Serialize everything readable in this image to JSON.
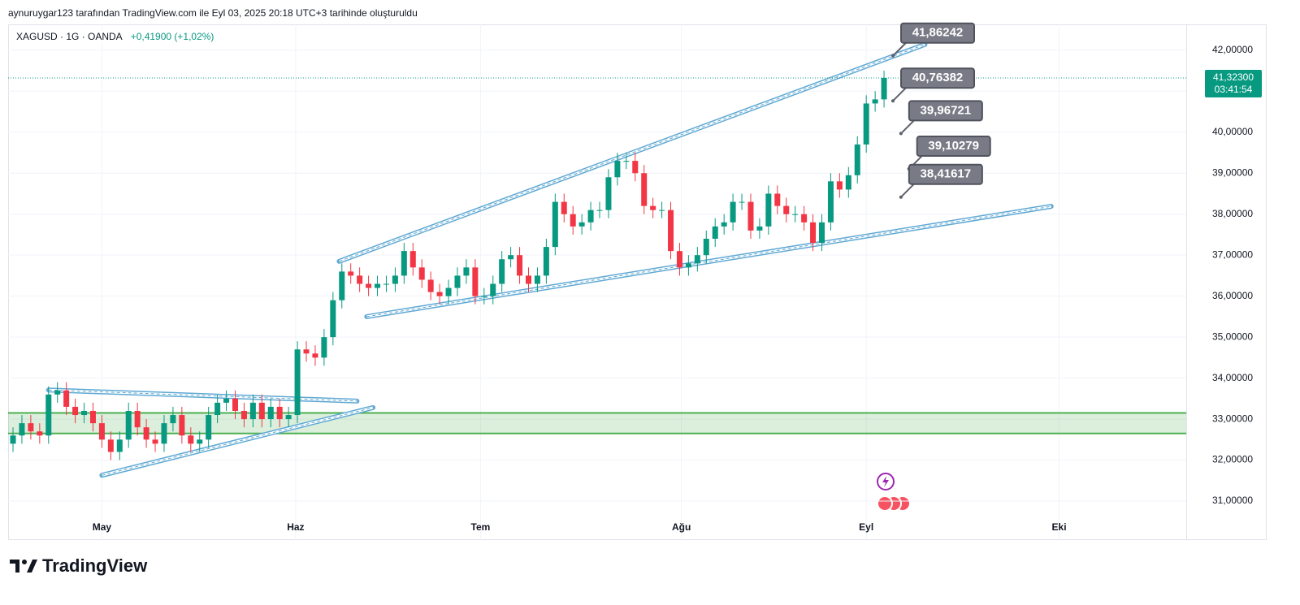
{
  "header": {
    "caption": "aynuruygar123 tarafından TradingView.com ile Eyl 03, 2025 20:18 UTC+3 tarihinde oluşturuldu"
  },
  "chart_data": {
    "type": "candlestick",
    "symbol": "XAGUSD · 1G · OANDA",
    "change": "+0,41900 (+1,02%)",
    "open": [
      32.4,
      32.6,
      32.9,
      32.7,
      32.6,
      33.6,
      33.7,
      33.3,
      33.1,
      33.2,
      32.9,
      32.5,
      32.2,
      32.5,
      33.2,
      32.8,
      32.5,
      32.4,
      32.9,
      33.1,
      32.6,
      32.4,
      32.5,
      33.1,
      33.4,
      33.5,
      33.2,
      33.0,
      33.4,
      33.0,
      33.3,
      33.0,
      33.1,
      34.7,
      34.6,
      34.5,
      35.0,
      35.9,
      36.6,
      36.5,
      36.3,
      36.2,
      36.3,
      36.3,
      36.5,
      37.1,
      36.7,
      36.4,
      36.1,
      36.0,
      36.2,
      36.5,
      36.7,
      36.0,
      36.0,
      36.3,
      36.9,
      37.0,
      36.5,
      36.3,
      36.5,
      37.2,
      38.3,
      38.0,
      37.7,
      37.8,
      38.1,
      38.1,
      38.9,
      39.3,
      39.3,
      39.0,
      38.2,
      38.1,
      38.1,
      37.1,
      36.7,
      36.8,
      37.0,
      37.4,
      37.7,
      37.8,
      38.3,
      38.3,
      37.6,
      37.7,
      38.5,
      38.2,
      38.0,
      38.0,
      37.8,
      37.3,
      37.8,
      38.8,
      38.6,
      38.95,
      39.7,
      40.7,
      40.8
    ],
    "high": [
      32.8,
      33.1,
      33.1,
      32.9,
      33.8,
      33.9,
      33.9,
      33.5,
      33.4,
      33.4,
      33.1,
      32.7,
      32.7,
      33.4,
      33.4,
      33.0,
      32.7,
      33.1,
      33.3,
      33.3,
      32.8,
      32.7,
      33.3,
      33.6,
      33.7,
      33.7,
      33.4,
      33.6,
      33.6,
      33.5,
      33.5,
      33.3,
      34.9,
      34.9,
      34.8,
      35.2,
      36.1,
      36.8,
      36.8,
      36.7,
      36.5,
      36.5,
      36.5,
      36.7,
      37.3,
      37.3,
      36.9,
      36.6,
      36.3,
      36.4,
      36.7,
      36.9,
      36.9,
      36.2,
      36.5,
      37.1,
      37.2,
      37.2,
      36.7,
      36.7,
      37.4,
      38.5,
      38.5,
      38.2,
      38.0,
      38.3,
      38.3,
      39.1,
      39.5,
      39.5,
      39.5,
      39.2,
      38.4,
      38.3,
      38.3,
      37.3,
      37.0,
      37.2,
      37.6,
      37.9,
      38.0,
      38.5,
      38.5,
      38.5,
      37.9,
      38.7,
      38.7,
      38.4,
      38.2,
      38.2,
      38.0,
      38.0,
      39.0,
      39.0,
      39.15,
      39.9,
      40.9,
      41.0,
      41.5
    ],
    "low": [
      32.2,
      32.4,
      32.5,
      32.4,
      32.4,
      33.4,
      33.1,
      32.9,
      32.9,
      32.7,
      32.3,
      32.0,
      32.0,
      32.3,
      32.6,
      32.3,
      32.2,
      32.2,
      32.7,
      32.4,
      32.2,
      32.2,
      32.3,
      32.9,
      33.2,
      33.0,
      32.8,
      32.8,
      32.8,
      32.8,
      32.8,
      32.8,
      32.9,
      34.4,
      34.3,
      34.3,
      34.8,
      35.7,
      36.3,
      36.1,
      36.0,
      36.0,
      36.1,
      36.1,
      36.3,
      36.5,
      36.2,
      35.9,
      35.8,
      35.8,
      36.0,
      36.3,
      35.8,
      35.8,
      35.8,
      36.1,
      36.7,
      36.3,
      36.1,
      36.1,
      36.3,
      37.0,
      37.8,
      37.5,
      37.5,
      37.6,
      37.9,
      37.9,
      38.7,
      39.1,
      38.8,
      38.0,
      37.9,
      37.9,
      36.9,
      36.5,
      36.5,
      36.6,
      36.8,
      37.2,
      37.5,
      37.6,
      38.1,
      37.4,
      37.4,
      37.5,
      38.0,
      37.8,
      37.8,
      37.6,
      37.1,
      37.1,
      37.6,
      38.4,
      38.4,
      38.75,
      39.5,
      40.5,
      40.6
    ],
    "close": [
      32.6,
      32.9,
      32.7,
      32.6,
      33.6,
      33.7,
      33.3,
      33.1,
      33.2,
      32.9,
      32.5,
      32.2,
      32.5,
      33.2,
      32.8,
      32.5,
      32.4,
      32.9,
      33.1,
      32.6,
      32.4,
      32.5,
      33.1,
      33.4,
      33.5,
      33.2,
      33.0,
      33.4,
      33.0,
      33.3,
      33.0,
      33.1,
      34.7,
      34.6,
      34.5,
      35.0,
      35.9,
      36.6,
      36.5,
      36.3,
      36.2,
      36.3,
      36.3,
      36.5,
      37.1,
      36.7,
      36.4,
      36.1,
      36.0,
      36.2,
      36.5,
      36.7,
      36.0,
      36.0,
      36.3,
      36.9,
      37.0,
      36.5,
      36.3,
      36.5,
      37.2,
      38.3,
      38.0,
      37.7,
      37.8,
      38.1,
      38.1,
      38.9,
      39.3,
      39.3,
      39.0,
      38.2,
      38.1,
      38.1,
      37.1,
      36.7,
      36.8,
      37.0,
      37.4,
      37.7,
      37.8,
      38.3,
      38.3,
      37.6,
      37.7,
      38.5,
      38.2,
      38.0,
      38.0,
      37.8,
      37.3,
      37.8,
      38.8,
      38.6,
      38.95,
      39.7,
      40.7,
      40.8,
      41.323
    ],
    "up_color": "#089981",
    "down_color": "#f23645",
    "xlim": [
      -0.55,
      132
    ],
    "xticks": [
      {
        "value": 10,
        "label": "May"
      },
      {
        "value": 31.8,
        "label": "Haz"
      },
      {
        "value": 52.6,
        "label": "Tem"
      },
      {
        "value": 75.2,
        "label": "Ağu"
      },
      {
        "value": 96,
        "label": "Eyl"
      },
      {
        "value": 117.7,
        "label": "Eki"
      }
    ],
    "ylim": [
      30.05,
      42.63
    ],
    "yticks": [
      {
        "value": 31,
        "label": "31,00000"
      },
      {
        "value": 32,
        "label": "32,00000"
      },
      {
        "value": 33,
        "label": "33,00000"
      },
      {
        "value": 34,
        "label": "34,00000"
      },
      {
        "value": 35,
        "label": "35,00000"
      },
      {
        "value": 36,
        "label": "36,00000"
      },
      {
        "value": 37,
        "label": "37,00000"
      },
      {
        "value": 38,
        "label": "38,00000"
      },
      {
        "value": 39,
        "label": "39,00000"
      },
      {
        "value": 40,
        "label": "40,00000"
      },
      {
        "value": 41,
        "label": "41,00000"
      },
      {
        "value": 42,
        "label": "42,00000"
      }
    ],
    "grid": true,
    "last_price": {
      "value": 41.323,
      "label": "41,32300"
    },
    "countdown": "03:41:54",
    "zone": [
      32.65,
      33.15
    ],
    "trend_lines": [
      [
        [
          36.7,
          36.85
        ],
        [
          102.6,
          42.14
        ]
      ],
      [
        [
          39.8,
          35.5
        ],
        [
          116.8,
          38.19
        ]
      ],
      [
        [
          4.0,
          33.71
        ],
        [
          38.7,
          33.44
        ]
      ],
      [
        [
          10,
          31.63
        ],
        [
          40.5,
          33.28
        ]
      ]
    ],
    "callouts": [
      {
        "x": 99,
        "value": 41.86242,
        "label": "41,86242"
      },
      {
        "x": 99,
        "value": 40.76382,
        "label": "40,76382"
      },
      {
        "x": 99.9,
        "value": 39.96721,
        "label": "39,96721"
      },
      {
        "x": 100.8,
        "value": 39.10279,
        "label": "39,10279"
      },
      {
        "x": 99.9,
        "value": 38.41617,
        "label": "38,41617"
      }
    ]
  },
  "footer": {
    "brand": "TradingView"
  }
}
